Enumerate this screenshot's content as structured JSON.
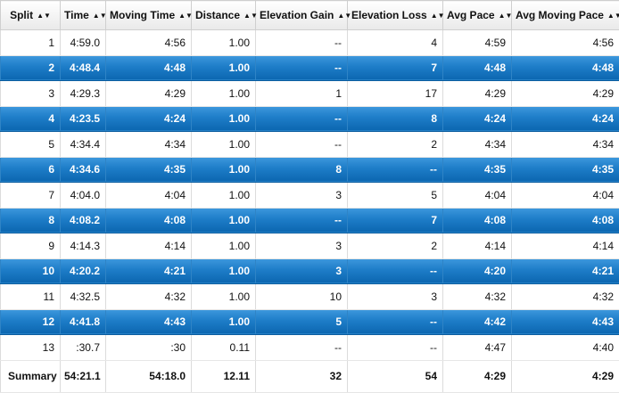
{
  "columns": [
    {
      "label": "Split",
      "sort_icon": "sort-arrows-icon"
    },
    {
      "label": "Time",
      "sort_icon": "sort-arrows-icon"
    },
    {
      "label": "Moving Time",
      "sort_icon": "sort-arrows-icon"
    },
    {
      "label": "Distance",
      "sort_icon": "sort-arrows-icon"
    },
    {
      "label": "Elevation Gain",
      "sort_icon": "sort-arrows-icon"
    },
    {
      "label": "Elevation Loss",
      "sort_icon": "sort-arrows-icon"
    },
    {
      "label": "Avg Pace",
      "sort_icon": "sort-arrows-icon"
    },
    {
      "label": "Avg Moving Pace",
      "sort_icon": "sort-arrows-icon"
    }
  ],
  "rows": [
    {
      "cells": [
        "1",
        "4:59.0",
        "4:56",
        "1.00",
        "--",
        "4",
        "4:59",
        "4:56"
      ],
      "highlighted": false
    },
    {
      "cells": [
        "2",
        "4:48.4",
        "4:48",
        "1.00",
        "--",
        "7",
        "4:48",
        "4:48"
      ],
      "highlighted": true
    },
    {
      "cells": [
        "3",
        "4:29.3",
        "4:29",
        "1.00",
        "1",
        "17",
        "4:29",
        "4:29"
      ],
      "highlighted": false
    },
    {
      "cells": [
        "4",
        "4:23.5",
        "4:24",
        "1.00",
        "--",
        "8",
        "4:24",
        "4:24"
      ],
      "highlighted": true
    },
    {
      "cells": [
        "5",
        "4:34.4",
        "4:34",
        "1.00",
        "--",
        "2",
        "4:34",
        "4:34"
      ],
      "highlighted": false
    },
    {
      "cells": [
        "6",
        "4:34.6",
        "4:35",
        "1.00",
        "8",
        "--",
        "4:35",
        "4:35"
      ],
      "highlighted": true
    },
    {
      "cells": [
        "7",
        "4:04.0",
        "4:04",
        "1.00",
        "3",
        "5",
        "4:04",
        "4:04"
      ],
      "highlighted": false
    },
    {
      "cells": [
        "8",
        "4:08.2",
        "4:08",
        "1.00",
        "--",
        "7",
        "4:08",
        "4:08"
      ],
      "highlighted": true
    },
    {
      "cells": [
        "9",
        "4:14.3",
        "4:14",
        "1.00",
        "3",
        "2",
        "4:14",
        "4:14"
      ],
      "highlighted": false
    },
    {
      "cells": [
        "10",
        "4:20.2",
        "4:21",
        "1.00",
        "3",
        "--",
        "4:20",
        "4:21"
      ],
      "highlighted": true
    },
    {
      "cells": [
        "11",
        "4:32.5",
        "4:32",
        "1.00",
        "10",
        "3",
        "4:32",
        "4:32"
      ],
      "highlighted": false
    },
    {
      "cells": [
        "12",
        "4:41.8",
        "4:43",
        "1.00",
        "5",
        "--",
        "4:42",
        "4:43"
      ],
      "highlighted": true
    },
    {
      "cells": [
        "13",
        ":30.7",
        ":30",
        "0.11",
        "--",
        "--",
        "4:47",
        "4:40"
      ],
      "highlighted": false
    }
  ],
  "summary": {
    "label": "Summary",
    "cells": [
      "54:21.1",
      "54:18.0",
      "12.11",
      "32",
      "54",
      "4:29",
      "4:29"
    ]
  }
}
